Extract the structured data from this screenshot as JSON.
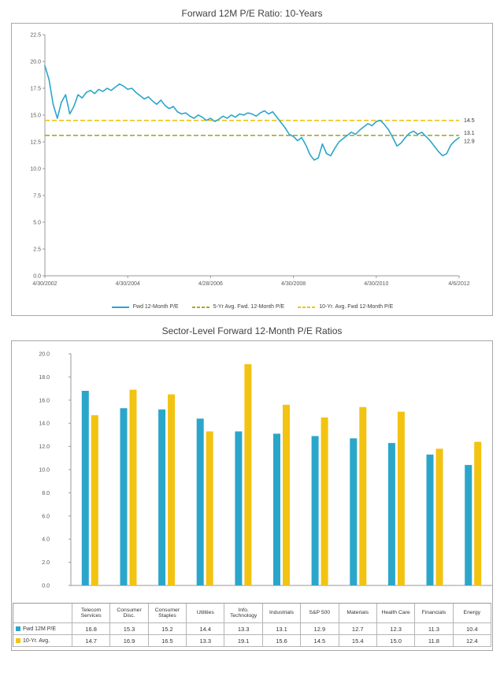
{
  "chart_data": [
    {
      "type": "line",
      "title": "Forward 12M P/E Ratio: 10-Years",
      "ylim": [
        0,
        22.5
      ],
      "yticks": [
        0.0,
        2.5,
        5.0,
        7.5,
        10.0,
        12.5,
        15.0,
        17.5,
        20.0,
        22.5
      ],
      "x_tick_labels": [
        "4/30/2002",
        "4/30/2004",
        "4/28/2006",
        "4/30/2008",
        "4/30/2010",
        "4/6/2012"
      ],
      "grid": false,
      "legend_position": "bottom",
      "series": [
        {
          "name": "Fwd 12-Month P/E",
          "style": "solid",
          "color": "#2ba6cb",
          "values": [
            19.6,
            18.3,
            16.0,
            14.7,
            16.2,
            16.9,
            15.1,
            15.8,
            16.9,
            16.6,
            17.1,
            17.3,
            17.0,
            17.4,
            17.2,
            17.5,
            17.3,
            17.6,
            17.9,
            17.7,
            17.4,
            17.5,
            17.1,
            16.8,
            16.5,
            16.7,
            16.3,
            16.0,
            16.4,
            15.9,
            15.6,
            15.8,
            15.3,
            15.1,
            15.2,
            14.9,
            14.7,
            15.0,
            14.8,
            14.5,
            14.7,
            14.4,
            14.6,
            14.9,
            14.7,
            15.0,
            14.8,
            15.1,
            15.0,
            15.2,
            15.1,
            14.9,
            15.2,
            15.4,
            15.1,
            15.3,
            14.8,
            14.3,
            13.8,
            13.2,
            13.0,
            12.6,
            12.9,
            12.2,
            11.3,
            10.8,
            11.0,
            12.3,
            11.4,
            11.2,
            11.9,
            12.5,
            12.8,
            13.1,
            13.4,
            13.2,
            13.6,
            13.9,
            14.2,
            14.0,
            14.4,
            14.5,
            14.1,
            13.6,
            12.9,
            12.1,
            12.4,
            12.9,
            13.3,
            13.5,
            13.2,
            13.4,
            13.0,
            12.6,
            12.1,
            11.6,
            11.2,
            11.4,
            12.2,
            12.6,
            12.9
          ]
        },
        {
          "name": "5-Yr Avg. Fwd. 12-Month P/E",
          "style": "dashed",
          "color": "#a6a832",
          "value": 13.1
        },
        {
          "name": "10-Yr. Avg. Fwd 12-Month P/E",
          "style": "dashed",
          "color": "#eec517",
          "value": 14.5
        }
      ],
      "right_labels": [
        {
          "text": "14.5",
          "value": 14.5,
          "dy": 2
        },
        {
          "text": "13.1",
          "value": 13.1,
          "dy": -1
        },
        {
          "text": "12.9",
          "value": 12.9,
          "dy": 7
        }
      ]
    },
    {
      "type": "bar",
      "title": "Sector-Level Forward 12-Month P/E Ratios",
      "ylim": [
        0,
        20
      ],
      "yticks": [
        0.0,
        2.0,
        4.0,
        6.0,
        8.0,
        10.0,
        12.0,
        14.0,
        16.0,
        18.0,
        20.0
      ],
      "grid": false,
      "legend_position": "table-left",
      "categories": [
        "Telecom Services",
        "Consumer Disc.",
        "Consumer Staples",
        "Utilities",
        "Info. Technology",
        "Industrials",
        "S&P 500",
        "Materials",
        "Health Care",
        "Financials",
        "Energy"
      ],
      "series": [
        {
          "name": "Fwd 12M P/E",
          "color": "#2ba6cb",
          "values": [
            16.8,
            15.3,
            15.2,
            14.4,
            13.3,
            13.1,
            12.9,
            12.7,
            12.3,
            11.3,
            10.4
          ]
        },
        {
          "name": "10-Yr. Avg.",
          "color": "#f2c311",
          "values": [
            14.7,
            16.9,
            16.5,
            13.3,
            19.1,
            15.6,
            14.5,
            15.4,
            15.0,
            11.8,
            12.4
          ]
        }
      ]
    }
  ]
}
